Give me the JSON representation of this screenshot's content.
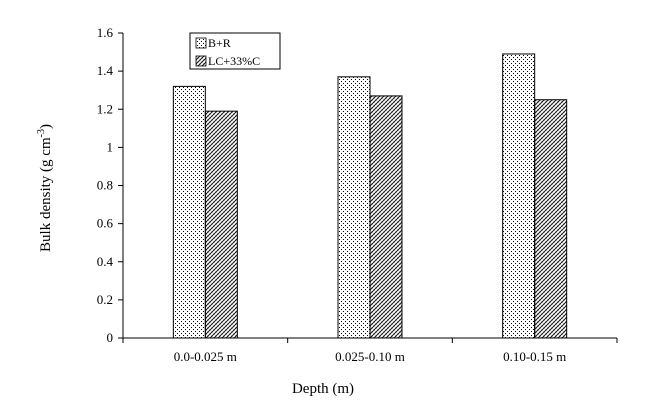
{
  "chart_data": {
    "type": "bar",
    "categories": [
      "0.0-0.025 m",
      "0.025-0.10 m",
      "0.10-0.15 m"
    ],
    "series": [
      {
        "name": "B+R",
        "values": [
          1.32,
          1.37,
          1.49
        ],
        "pattern": "dots"
      },
      {
        "name": "LC+33%C",
        "values": [
          1.19,
          1.27,
          1.25
        ],
        "pattern": "crosshatch"
      }
    ],
    "xlabel": "Depth (m)",
    "ylabel": {
      "main": "Bulk density (g cm",
      "superscript": "-3",
      "close": ")"
    },
    "ylim": [
      0,
      1.6
    ],
    "yticks": [
      "0",
      "0.2",
      "0.4",
      "0.6",
      "0.8",
      "1",
      "1.2",
      "1.4",
      "1.6"
    ],
    "grid": false,
    "legend_position": "top-left",
    "colors": {
      "bar_fill": "#ffffff",
      "pattern": "#000000",
      "outline": "#000000"
    }
  }
}
